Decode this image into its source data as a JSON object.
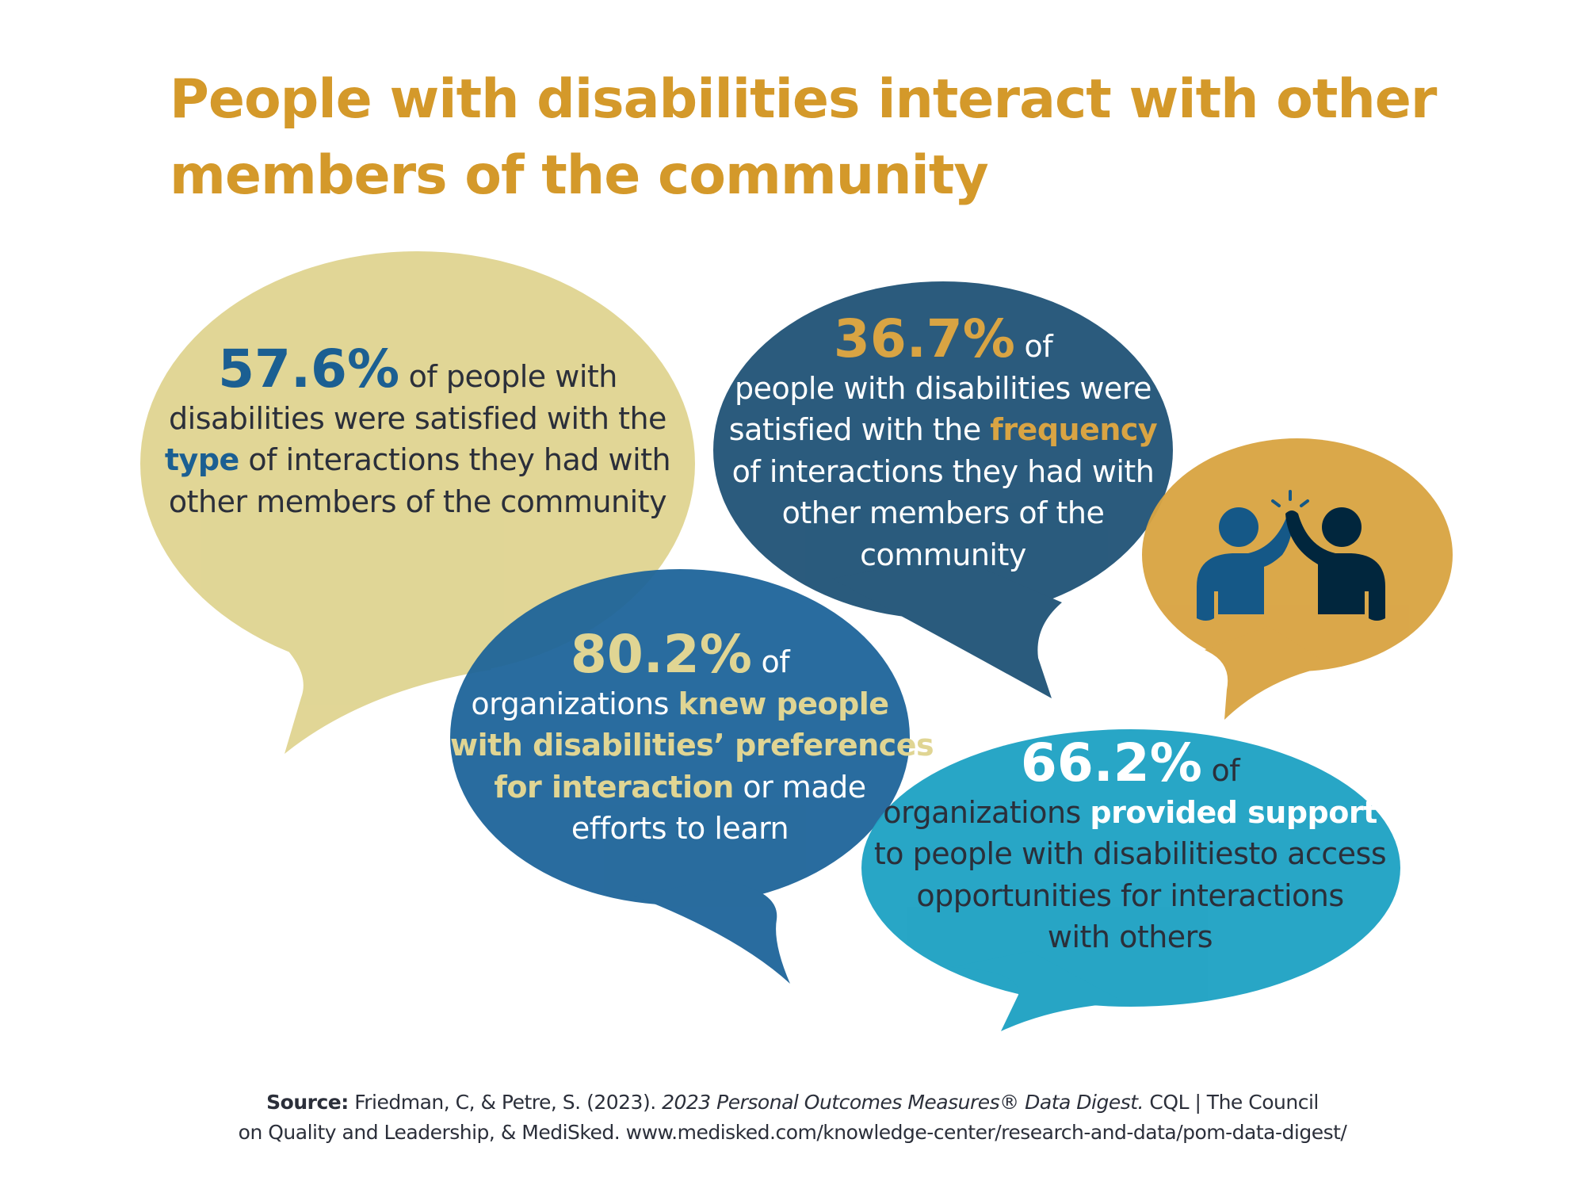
{
  "title": {
    "line1": "People with disabilities interact with other",
    "line2": "members of the community"
  },
  "colors": {
    "title": "#d4992a",
    "khaki": "#e0d593",
    "navy": "#245679",
    "gold": "#d9a443",
    "blue": "#1c6399",
    "teal": "#21a3c4",
    "dark_text": "#2b2f3a"
  },
  "bubbles": {
    "type": {
      "stat": "57.6%",
      "l1": " of people with",
      "l2": "disabilities were satisfied with the",
      "l3_hl": "type",
      "l3": " of interactions they had with",
      "l4": "other members of the community"
    },
    "frequency": {
      "stat": "36.7%",
      "l1": " of",
      "l2": "people with disabilities were",
      "l3": "satisfied with the ",
      "l3_hl": "frequency",
      "l4": "of interactions they had with",
      "l5": "other members of the",
      "l6": "community"
    },
    "preferences": {
      "stat": "80.2%",
      "l1": " of",
      "l2": "organizations ",
      "l2_hl": "knew people",
      "l3_hl": "with disabilities’ preferences",
      "l4_hl": "for interaction",
      "l4": " or made",
      "l5": "efforts to learn"
    },
    "support": {
      "stat": "66.2%",
      "l1": " of",
      "l2": "organizations ",
      "l2_hl": "provided support",
      "l3": "to people with disabilitiesto access",
      "l4": "opportunities for interactions",
      "l5": "with others"
    },
    "icon": "high-five-icon"
  },
  "source": {
    "label": "Source:",
    "text1": " Friedman, C, & Petre, S. (2023). ",
    "title_italic": "2023 Personal Outcomes Measures® Data Digest.",
    "text2": " CQL | The Council",
    "line2": "on Quality and Leadership, & MediSked. www.medisked.com/knowledge-center/research-and-data/pom-data-digest/"
  }
}
